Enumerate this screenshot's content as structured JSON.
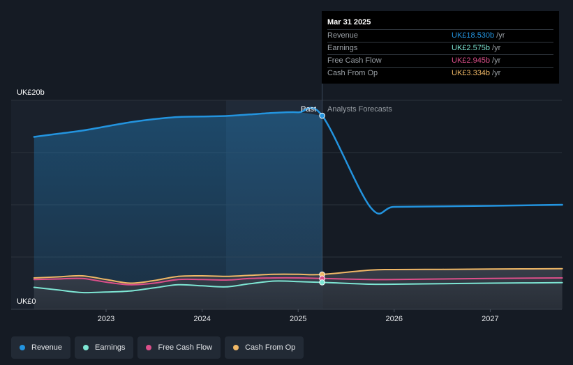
{
  "tooltip": {
    "date": "Mar 31 2025",
    "rows": [
      {
        "name": "Revenue",
        "value": "UK£18.530b",
        "unit": "/yr",
        "color": "#2394df"
      },
      {
        "name": "Earnings",
        "value": "UK£2.575b",
        "unit": "/yr",
        "color": "#7ee6d4"
      },
      {
        "name": "Free Cash Flow",
        "value": "UK£2.945b",
        "unit": "/yr",
        "color": "#dc4f8a"
      },
      {
        "name": "Cash From Op",
        "value": "UK£3.334b",
        "unit": "/yr",
        "color": "#f0b866"
      }
    ]
  },
  "divider": {
    "past_label": "Past",
    "forecast_label": "Analysts Forecasts"
  },
  "legend": [
    {
      "label": "Revenue",
      "color": "#2394df"
    },
    {
      "label": "Earnings",
      "color": "#7ee6d4"
    },
    {
      "label": "Free Cash Flow",
      "color": "#dc4f8a"
    },
    {
      "label": "Cash From Op",
      "color": "#f0b866"
    }
  ],
  "chart_data": {
    "type": "line",
    "y_top_label": "UK£20b",
    "y_bottom_label": "UK£0",
    "ylim": [
      0,
      20
    ],
    "xlim": [
      2022.25,
      2027.75
    ],
    "x_ticks": [
      "2023",
      "2024",
      "2025",
      "2026",
      "2027"
    ],
    "x_tick_values": [
      2023,
      2024,
      2025,
      2026,
      2027
    ],
    "past_end": 2025.25,
    "highlight_start": 2024.25,
    "grid": true,
    "legend_position": "bottom-left",
    "series": [
      {
        "name": "Revenue",
        "color": "#2394df",
        "x": [
          2022.25,
          2022.5,
          2022.75,
          2023.0,
          2023.25,
          2023.5,
          2023.75,
          2024.0,
          2024.25,
          2024.5,
          2024.75,
          2025.0,
          2025.25,
          2025.75,
          2026.0,
          2026.5,
          2027.0,
          2027.75
        ],
        "y": [
          16.5,
          16.8,
          17.1,
          17.5,
          17.9,
          18.2,
          18.4,
          18.45,
          18.5,
          18.65,
          18.8,
          18.85,
          18.53,
          9.8,
          9.8,
          9.85,
          9.9,
          10.0
        ]
      },
      {
        "name": "Earnings",
        "color": "#7ee6d4",
        "x": [
          2022.25,
          2022.5,
          2022.75,
          2023.0,
          2023.25,
          2023.5,
          2023.75,
          2024.0,
          2024.25,
          2024.5,
          2024.75,
          2025.0,
          2025.25,
          2025.75,
          2026.0,
          2026.5,
          2027.0,
          2027.75
        ],
        "y": [
          2.1,
          1.85,
          1.6,
          1.65,
          1.75,
          2.05,
          2.35,
          2.25,
          2.15,
          2.45,
          2.7,
          2.65,
          2.575,
          2.4,
          2.4,
          2.45,
          2.5,
          2.55
        ]
      },
      {
        "name": "Free Cash Flow",
        "color": "#dc4f8a",
        "x": [
          2022.25,
          2022.5,
          2022.75,
          2023.0,
          2023.25,
          2023.5,
          2023.75,
          2024.0,
          2024.25,
          2024.5,
          2024.75,
          2025.0,
          2025.25,
          2025.75,
          2026.0,
          2026.5,
          2027.0,
          2027.75
        ],
        "y": [
          2.85,
          2.9,
          2.95,
          2.6,
          2.35,
          2.5,
          2.85,
          2.85,
          2.8,
          2.95,
          3.0,
          3.0,
          2.945,
          2.85,
          2.85,
          2.9,
          2.95,
          3.0
        ]
      },
      {
        "name": "Cash From Op",
        "color": "#f0b866",
        "x": [
          2022.25,
          2022.5,
          2022.75,
          2023.0,
          2023.25,
          2023.5,
          2023.75,
          2024.0,
          2024.25,
          2024.5,
          2024.75,
          2025.0,
          2025.25,
          2025.75,
          2026.0,
          2026.5,
          2027.0,
          2027.75
        ],
        "y": [
          3.0,
          3.1,
          3.2,
          2.85,
          2.5,
          2.75,
          3.15,
          3.2,
          3.15,
          3.25,
          3.35,
          3.35,
          3.334,
          3.75,
          3.8,
          3.82,
          3.85,
          3.88
        ]
      }
    ]
  }
}
